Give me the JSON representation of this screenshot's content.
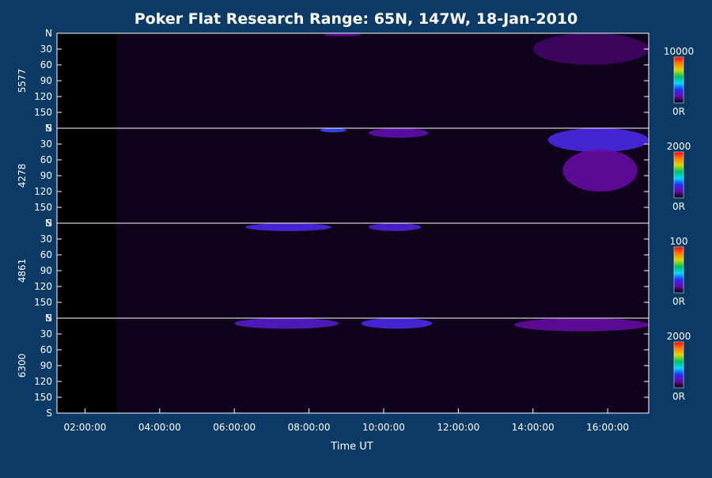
{
  "chart_data": {
    "type": "heatmap",
    "title": "Poker Flat Research Range: 65N, 147W, 18-Jan-2010",
    "xlabel": "Time UT",
    "x_ticks": [
      "02:00:00",
      "04:00:00",
      "06:00:00",
      "08:00:00",
      "10:00:00",
      "12:00:00",
      "14:00:00",
      "16:00:00"
    ],
    "x_range_hours": [
      1.25,
      17.1
    ],
    "y_ticks": [
      "N",
      "30",
      "60",
      "90",
      "120",
      "150",
      "S"
    ],
    "y_range": [
      0,
      180
    ],
    "colormap": [
      "#000000",
      "#6a0aa8",
      "#2a2aff",
      "#00d8ff",
      "#00c060",
      "#d8d800",
      "#ff8000",
      "#ff0000"
    ],
    "data_start_hour": 2.85,
    "panels": [
      {
        "name": "5577",
        "colorbar_max": "10000",
        "colorbar_min": "0R",
        "features": [
          {
            "t0": 8.4,
            "t1": 9.4,
            "a0": 0,
            "a1": 6,
            "level": 0.3
          },
          {
            "t0": 14.0,
            "t1": 17.1,
            "a0": 0,
            "a1": 60,
            "level": 0.22
          }
        ]
      },
      {
        "name": "4278",
        "colorbar_max": "2000",
        "colorbar_min": "0R",
        "features": [
          {
            "t0": 8.3,
            "t1": 9.0,
            "a0": 0,
            "a1": 8,
            "level": 0.7
          },
          {
            "t0": 9.6,
            "t1": 11.2,
            "a0": 0,
            "a1": 18,
            "level": 0.4
          },
          {
            "t0": 14.4,
            "t1": 17.1,
            "a0": 0,
            "a1": 45,
            "level": 0.6
          },
          {
            "t0": 14.8,
            "t1": 16.8,
            "a0": 40,
            "a1": 120,
            "level": 0.35
          }
        ]
      },
      {
        "name": "4861",
        "colorbar_max": "100",
        "colorbar_min": "0R",
        "features": [
          {
            "t0": 6.3,
            "t1": 8.6,
            "a0": 0,
            "a1": 15,
            "level": 0.6
          },
          {
            "t0": 9.6,
            "t1": 11.0,
            "a0": 0,
            "a1": 15,
            "level": 0.55
          }
        ]
      },
      {
        "name": "6300",
        "colorbar_max": "2000",
        "colorbar_min": "0R",
        "features": [
          {
            "t0": 6.0,
            "t1": 8.8,
            "a0": 0,
            "a1": 20,
            "level": 0.5
          },
          {
            "t0": 9.4,
            "t1": 11.3,
            "a0": 0,
            "a1": 20,
            "level": 0.6
          },
          {
            "t0": 13.5,
            "t1": 17.1,
            "a0": 0,
            "a1": 25,
            "level": 0.35
          }
        ]
      }
    ]
  }
}
